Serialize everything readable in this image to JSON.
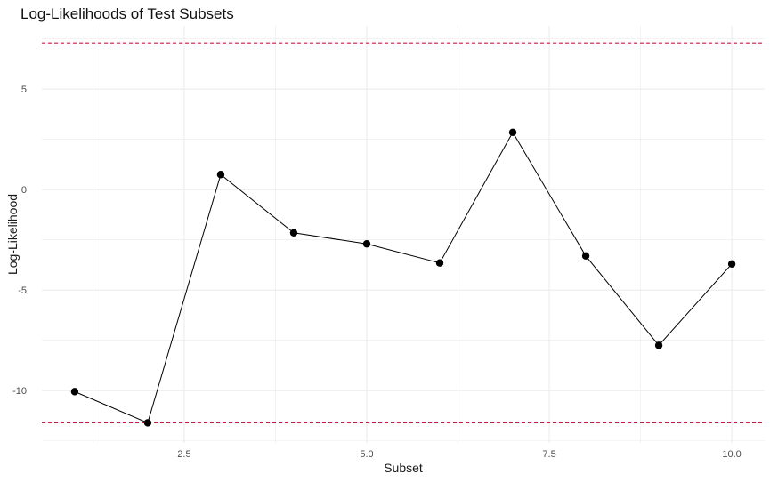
{
  "chart_data": {
    "type": "line",
    "title": "Log-Likelihoods of Test Subsets",
    "xlabel": "Subset",
    "ylabel": "Log-Likelihood",
    "x": [
      1,
      2,
      3,
      4,
      5,
      6,
      7,
      8,
      9,
      10
    ],
    "series": [
      {
        "values": [
          -10.05,
          -11.6,
          0.75,
          -2.15,
          -2.7,
          -3.65,
          2.85,
          -3.3,
          -7.75,
          -3.7
        ]
      }
    ],
    "reference_lines": [
      {
        "orientation": "horizontal",
        "y": 7.3,
        "style": "dashed",
        "color": "#dc143c"
      },
      {
        "orientation": "horizontal",
        "y": -11.6,
        "style": "dashed",
        "color": "#dc143c"
      }
    ],
    "x_ticks": [
      2.5,
      5.0,
      7.5,
      10.0
    ],
    "x_tick_labels": [
      "2.5",
      "5.0",
      "7.5",
      "10.0"
    ],
    "y_ticks": [
      -10,
      -5,
      0,
      5
    ],
    "y_tick_labels": [
      "-10",
      "-5",
      "0",
      "5"
    ],
    "xlim": [
      0.55,
      10.45
    ],
    "ylim": [
      -12.6,
      8.15
    ],
    "grid": true,
    "colors": {
      "line": "#000000",
      "point": "#000000",
      "grid": "#ebebeb",
      "reference": "#dc143c"
    }
  }
}
